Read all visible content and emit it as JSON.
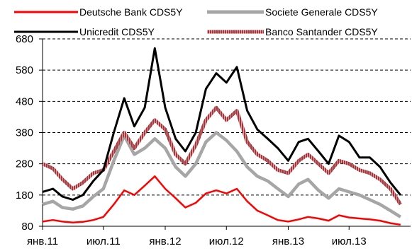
{
  "chart_data": {
    "type": "line",
    "title": "",
    "xlabel": "",
    "ylabel": "",
    "x_range": [
      "2011-01-01",
      "2013-12-31"
    ],
    "x_ticks": [
      {
        "date": "2011-01-01",
        "label": "янв.11"
      },
      {
        "date": "2011-07-01",
        "label": "июл.11"
      },
      {
        "date": "2012-01-01",
        "label": "янв.12"
      },
      {
        "date": "2012-07-01",
        "label": "июл.12"
      },
      {
        "date": "2013-01-01",
        "label": "янв.13"
      },
      {
        "date": "2013-07-01",
        "label": "июл.13"
      }
    ],
    "ylim": [
      80,
      680
    ],
    "y_ticks": [
      80,
      180,
      280,
      380,
      480,
      580,
      680
    ],
    "grid": "horizontal-dashed",
    "legend": "top",
    "series": [
      {
        "name": "Deutsche Bank CDS5Y",
        "color": "#ff0000",
        "style": "solid",
        "points": [
          [
            "2011-01-01",
            95
          ],
          [
            "2011-02-01",
            100
          ],
          [
            "2011-03-01",
            95
          ],
          [
            "2011-04-01",
            92
          ],
          [
            "2011-05-01",
            94
          ],
          [
            "2011-06-01",
            100
          ],
          [
            "2011-07-01",
            110
          ],
          [
            "2011-08-01",
            150
          ],
          [
            "2011-09-01",
            195
          ],
          [
            "2011-10-01",
            180
          ],
          [
            "2011-11-01",
            210
          ],
          [
            "2011-12-01",
            240
          ],
          [
            "2012-01-01",
            200
          ],
          [
            "2012-02-01",
            170
          ],
          [
            "2012-03-01",
            140
          ],
          [
            "2012-04-01",
            155
          ],
          [
            "2012-05-01",
            185
          ],
          [
            "2012-06-01",
            195
          ],
          [
            "2012-07-01",
            185
          ],
          [
            "2012-08-01",
            200
          ],
          [
            "2012-09-01",
            160
          ],
          [
            "2012-10-01",
            130
          ],
          [
            "2012-11-01",
            115
          ],
          [
            "2012-12-01",
            100
          ],
          [
            "2013-01-01",
            95
          ],
          [
            "2013-02-01",
            102
          ],
          [
            "2013-03-01",
            110
          ],
          [
            "2013-04-01",
            105
          ],
          [
            "2013-05-01",
            98
          ],
          [
            "2013-06-01",
            115
          ],
          [
            "2013-07-01",
            108
          ],
          [
            "2013-08-01",
            105
          ],
          [
            "2013-09-01",
            102
          ],
          [
            "2013-10-01",
            98
          ],
          [
            "2013-11-01",
            90
          ],
          [
            "2013-12-01",
            85
          ]
        ]
      },
      {
        "name": "Societe Generale CDS5Y",
        "color": "#a6a6a6",
        "style": "thick",
        "points": [
          [
            "2011-01-01",
            150
          ],
          [
            "2011-02-01",
            160
          ],
          [
            "2011-03-01",
            140
          ],
          [
            "2011-04-01",
            135
          ],
          [
            "2011-05-01",
            145
          ],
          [
            "2011-06-01",
            175
          ],
          [
            "2011-07-01",
            200
          ],
          [
            "2011-08-01",
            290
          ],
          [
            "2011-09-01",
            370
          ],
          [
            "2011-10-01",
            310
          ],
          [
            "2011-11-01",
            330
          ],
          [
            "2011-12-01",
            360
          ],
          [
            "2012-01-01",
            330
          ],
          [
            "2012-02-01",
            270
          ],
          [
            "2012-03-01",
            240
          ],
          [
            "2012-04-01",
            280
          ],
          [
            "2012-05-01",
            350
          ],
          [
            "2012-06-01",
            380
          ],
          [
            "2012-07-01",
            355
          ],
          [
            "2012-08-01",
            320
          ],
          [
            "2012-09-01",
            270
          ],
          [
            "2012-10-01",
            240
          ],
          [
            "2012-11-01",
            225
          ],
          [
            "2012-12-01",
            200
          ],
          [
            "2013-01-01",
            175
          ],
          [
            "2013-02-01",
            215
          ],
          [
            "2013-03-01",
            230
          ],
          [
            "2013-04-01",
            195
          ],
          [
            "2013-05-01",
            170
          ],
          [
            "2013-06-01",
            200
          ],
          [
            "2013-07-01",
            190
          ],
          [
            "2013-08-01",
            180
          ],
          [
            "2013-09-01",
            165
          ],
          [
            "2013-10-01",
            150
          ],
          [
            "2013-11-01",
            130
          ],
          [
            "2013-12-01",
            110
          ]
        ]
      },
      {
        "name": "Unicredit CDS5Y",
        "color": "#000000",
        "style": "solid",
        "points": [
          [
            "2011-01-01",
            190
          ],
          [
            "2011-02-01",
            200
          ],
          [
            "2011-03-01",
            175
          ],
          [
            "2011-04-01",
            165
          ],
          [
            "2011-05-01",
            180
          ],
          [
            "2011-06-01",
            225
          ],
          [
            "2011-07-01",
            260
          ],
          [
            "2011-08-01",
            380
          ],
          [
            "2011-09-01",
            490
          ],
          [
            "2011-10-01",
            400
          ],
          [
            "2011-11-01",
            460
          ],
          [
            "2011-12-01",
            650
          ],
          [
            "2012-01-01",
            460
          ],
          [
            "2012-02-01",
            360
          ],
          [
            "2012-03-01",
            320
          ],
          [
            "2012-04-01",
            380
          ],
          [
            "2012-05-01",
            520
          ],
          [
            "2012-06-01",
            570
          ],
          [
            "2012-07-01",
            540
          ],
          [
            "2012-08-01",
            590
          ],
          [
            "2012-09-01",
            450
          ],
          [
            "2012-10-01",
            390
          ],
          [
            "2012-11-01",
            360
          ],
          [
            "2012-12-01",
            330
          ],
          [
            "2013-01-01",
            290
          ],
          [
            "2013-02-01",
            350
          ],
          [
            "2013-03-01",
            360
          ],
          [
            "2013-04-01",
            320
          ],
          [
            "2013-05-01",
            280
          ],
          [
            "2013-06-01",
            370
          ],
          [
            "2013-07-01",
            350
          ],
          [
            "2013-08-01",
            300
          ],
          [
            "2013-09-01",
            300
          ],
          [
            "2013-10-01",
            270
          ],
          [
            "2013-11-01",
            220
          ],
          [
            "2013-12-01",
            180
          ]
        ]
      },
      {
        "name": "Banco Santander CDS5Y",
        "color": "#a0373d",
        "style": "hatched",
        "points": [
          [
            "2011-01-01",
            280
          ],
          [
            "2011-02-01",
            265
          ],
          [
            "2011-03-01",
            230
          ],
          [
            "2011-04-01",
            200
          ],
          [
            "2011-05-01",
            220
          ],
          [
            "2011-06-01",
            250
          ],
          [
            "2011-07-01",
            260
          ],
          [
            "2011-08-01",
            320
          ],
          [
            "2011-09-01",
            380
          ],
          [
            "2011-10-01",
            330
          ],
          [
            "2011-11-01",
            380
          ],
          [
            "2011-12-01",
            420
          ],
          [
            "2012-01-01",
            390
          ],
          [
            "2012-02-01",
            310
          ],
          [
            "2012-03-01",
            280
          ],
          [
            "2012-04-01",
            340
          ],
          [
            "2012-05-01",
            420
          ],
          [
            "2012-06-01",
            460
          ],
          [
            "2012-07-01",
            420
          ],
          [
            "2012-08-01",
            450
          ],
          [
            "2012-09-01",
            350
          ],
          [
            "2012-10-01",
            310
          ],
          [
            "2012-11-01",
            290
          ],
          [
            "2012-12-01",
            260
          ],
          [
            "2013-01-01",
            250
          ],
          [
            "2013-02-01",
            290
          ],
          [
            "2013-03-01",
            310
          ],
          [
            "2013-04-01",
            280
          ],
          [
            "2013-05-01",
            250
          ],
          [
            "2013-06-01",
            290
          ],
          [
            "2013-07-01",
            280
          ],
          [
            "2013-08-01",
            260
          ],
          [
            "2013-09-01",
            250
          ],
          [
            "2013-10-01",
            230
          ],
          [
            "2013-11-01",
            200
          ],
          [
            "2013-12-01",
            150
          ]
        ]
      }
    ]
  }
}
